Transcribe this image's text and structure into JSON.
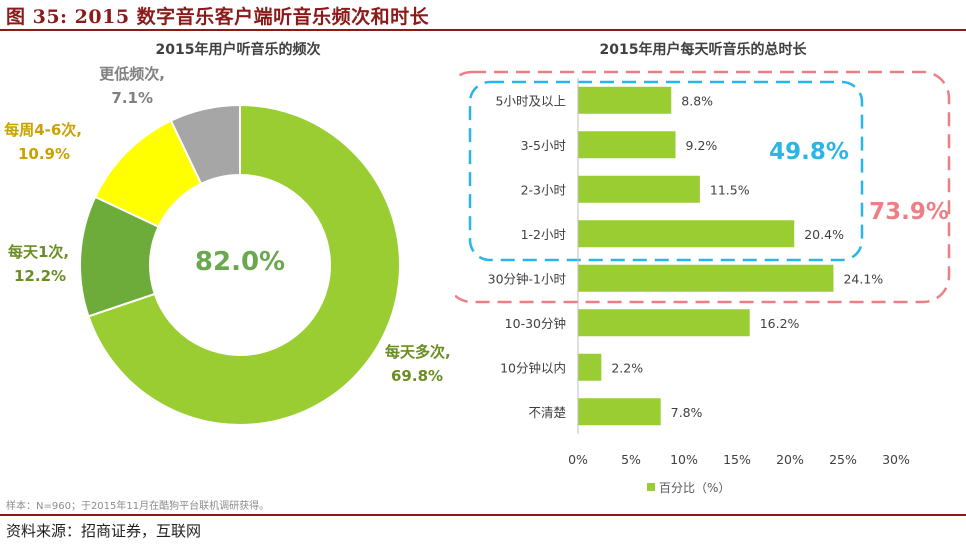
{
  "figure": {
    "title": "图 35: 2015 数字音乐客户端听音乐频次和时长",
    "note": "样本：N=960；于2015年11月在酷狗平台联机调研获得。",
    "source": "资料来源：招商证券，互联网"
  },
  "colors": {
    "accent_red": "#8b1a1a",
    "green": "#9acd32",
    "dark_green": "#6dac3b",
    "yellow": "#ffff00",
    "gray": "#a6a6a6",
    "label_green": "#6b8e23",
    "label_gold": "#c9a200",
    "blue": "#29b6e6",
    "pink": "#ec7f85"
  },
  "chart_data": [
    {
      "type": "pie",
      "variant": "donut",
      "title": "2015年用户听音乐的频次",
      "center_label": "82.0%",
      "slices": [
        {
          "label": "每天多次,",
          "value": 69.8,
          "value_label": "69.8%",
          "color": "#9acd32"
        },
        {
          "label": "每天1次,",
          "value": 12.2,
          "value_label": "12.2%",
          "color": "#6dac3b"
        },
        {
          "label": "每周4-6次,",
          "value": 10.9,
          "value_label": "10.9%",
          "color": "#ffff00"
        },
        {
          "label": "更低频次,",
          "value": 7.1,
          "value_label": "7.1%",
          "color": "#a6a6a6"
        }
      ]
    },
    {
      "type": "bar",
      "orientation": "horizontal",
      "title": "2015年用户每天听音乐的总时长",
      "categories": [
        "5小时及以上",
        "3-5小时",
        "2-3小时",
        "1-2小时",
        "30分钟-1小时",
        "10-30分钟",
        "10分钟以内",
        "不清楚"
      ],
      "values": [
        8.8,
        9.2,
        11.5,
        20.4,
        24.1,
        16.2,
        2.2,
        7.8
      ],
      "value_labels": [
        "8.8%",
        "9.2%",
        "11.5%",
        "20.4%",
        "24.1%",
        "16.2%",
        "2.2%",
        "7.8%"
      ],
      "xlim": [
        0,
        30
      ],
      "xticks": [
        "0%",
        "5%",
        "10%",
        "15%",
        "20%",
        "25%",
        "30%"
      ],
      "legend": "百分比（%）",
      "legend_position": "bottom",
      "bar_color": "#9acd32",
      "annotations": [
        {
          "text": "49.8%",
          "color": "#29b6e6",
          "covers": [
            "5小时及以上",
            "3-5小时",
            "2-3小时",
            "1-2小时"
          ]
        },
        {
          "text": "73.9%",
          "color": "#ec7f85",
          "covers": [
            "5小时及以上",
            "3-5小时",
            "2-3小时",
            "1-2小时",
            "30分钟-1小时"
          ]
        }
      ]
    }
  ]
}
